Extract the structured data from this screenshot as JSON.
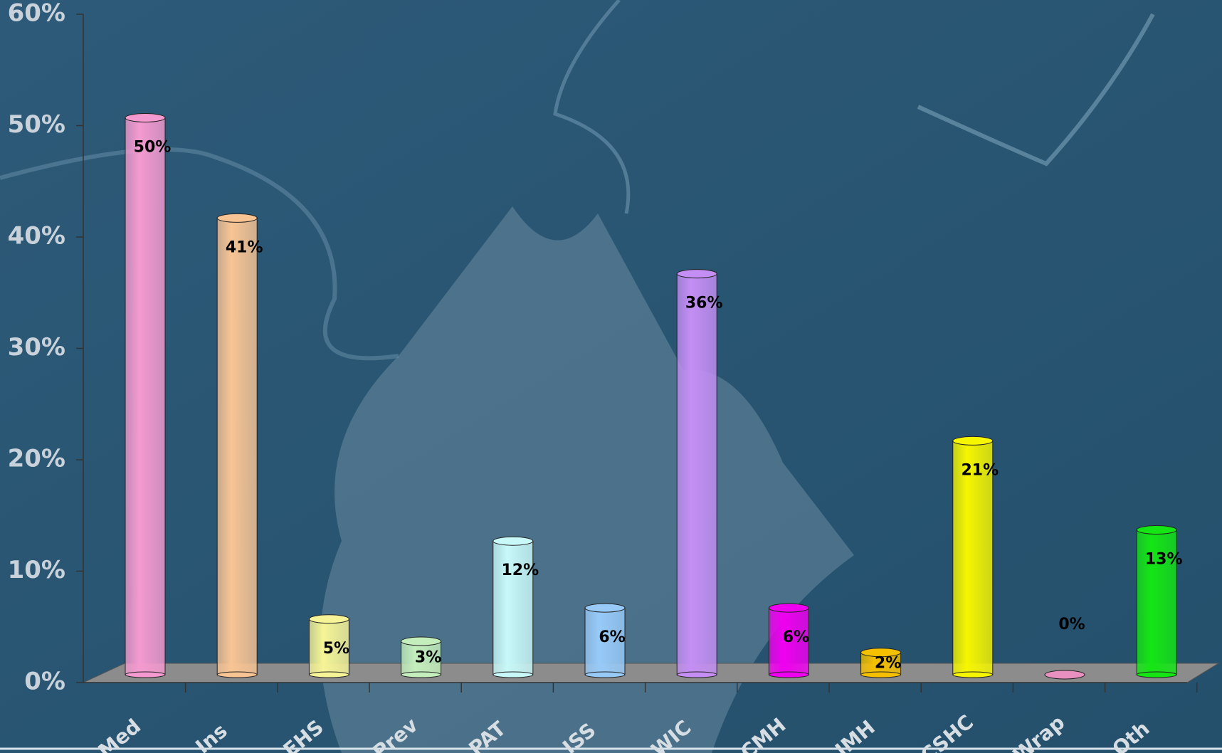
{
  "chart_data": {
    "type": "bar",
    "categories": [
      "Med",
      "Ins",
      "EHS",
      "Prev",
      "PAT",
      "ISS",
      "WIC",
      "CMH",
      "IMH",
      "CSHC",
      "Wrap",
      "Oth"
    ],
    "values": [
      50,
      41,
      5,
      3,
      12,
      6,
      36,
      6,
      2,
      21,
      0,
      13
    ],
    "value_labels": [
      "50%",
      "41%",
      "5%",
      "3%",
      "12%",
      "6%",
      "36%",
      "6%",
      "2%",
      "21%",
      "0%",
      "13%"
    ],
    "colors": [
      "#f59ad0",
      "#f8c494",
      "#f6f496",
      "#c4eebc",
      "#c8f8f8",
      "#98caf8",
      "#c48ef4",
      "#f000f0",
      "#f4c000",
      "#f6f600",
      "#e890c0",
      "#14e614"
    ],
    "ylim": [
      0,
      60
    ],
    "yticks": [
      {
        "value": 0,
        "label": "0%"
      },
      {
        "value": 10,
        "label": "10%"
      },
      {
        "value": 20,
        "label": "20%"
      },
      {
        "value": 30,
        "label": "30%"
      },
      {
        "value": 40,
        "label": "40%"
      },
      {
        "value": 50,
        "label": "50%"
      },
      {
        "value": 60,
        "label": "60%"
      }
    ]
  }
}
